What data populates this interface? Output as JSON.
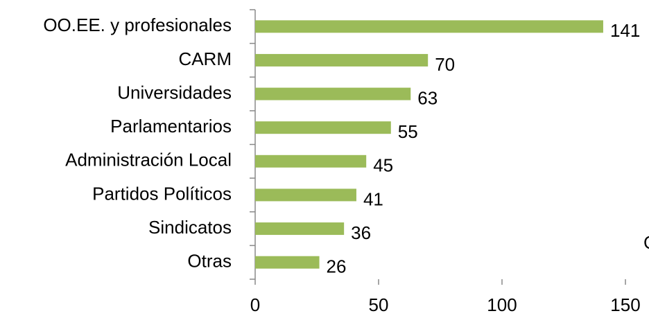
{
  "chart_data": {
    "type": "barh",
    "categories": [
      "OO.EE. y profesionales",
      "CARM",
      "Universidades",
      "Parlamentarios",
      "Administración Local",
      "Partidos Políticos",
      "Sindicatos",
      "Otras"
    ],
    "values": [
      141,
      70,
      63,
      55,
      45,
      41,
      36,
      26
    ],
    "color": "#9bbb59",
    "xlim": [
      0,
      150
    ],
    "xticks": [
      0,
      50,
      100,
      150
    ],
    "annotation": "C"
  }
}
